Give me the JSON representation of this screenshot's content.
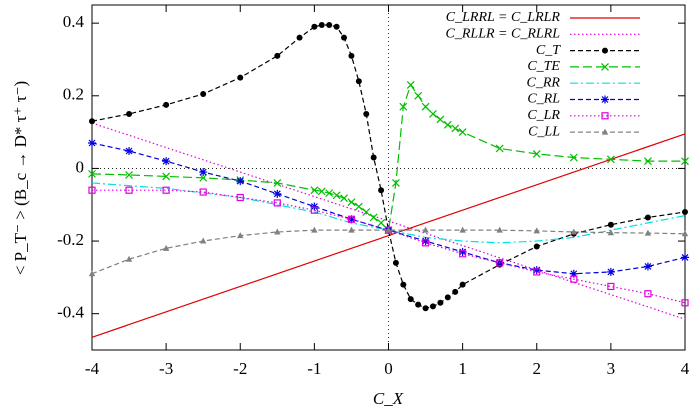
{
  "chart_data": {
    "type": "line",
    "x_label": "C_X",
    "y_label": "< P_T⁻ > (B_c → D* τ⁺ τ⁻)",
    "xlim": [
      -4,
      4
    ],
    "xticks": [
      -4,
      -3,
      -2,
      -1,
      0,
      1,
      2,
      3,
      4
    ],
    "ylim": [
      -0.5,
      0.45
    ],
    "yticks": [
      -0.4,
      -0.2,
      0,
      0.2,
      0.4
    ],
    "zero_lines": true,
    "legend": "top-right",
    "series": [
      {
        "name": "C_LRRL = C_LRLR",
        "color": "#e00000",
        "dash": "solid",
        "marker": null,
        "x": [
          -4,
          4
        ],
        "values": [
          -0.465,
          0.095
        ]
      },
      {
        "name": "C_RLLR = C_RLRL",
        "color": "#e000e0",
        "dash": "dotted",
        "marker": null,
        "x": [
          -4,
          0,
          4
        ],
        "values": [
          0.125,
          -0.145,
          -0.415
        ]
      },
      {
        "name": "C_T",
        "color": "#000000",
        "dash": "dashed",
        "marker": "circle",
        "x": [
          -4,
          -3.5,
          -3,
          -2.5,
          -2,
          -1.5,
          -1.2,
          -1,
          -0.9,
          -0.8,
          -0.7,
          -0.6,
          -0.5,
          -0.4,
          -0.3,
          -0.2,
          -0.1,
          0,
          0.1,
          0.2,
          0.3,
          0.4,
          0.5,
          0.6,
          0.7,
          0.8,
          0.9,
          1,
          1.5,
          2,
          2.5,
          3,
          3.5,
          4
        ],
        "values": [
          0.13,
          0.15,
          0.175,
          0.205,
          0.25,
          0.31,
          0.36,
          0.39,
          0.395,
          0.395,
          0.39,
          0.36,
          0.31,
          0.24,
          0.15,
          0.03,
          -0.06,
          -0.17,
          -0.26,
          -0.32,
          -0.36,
          -0.375,
          -0.385,
          -0.38,
          -0.37,
          -0.355,
          -0.34,
          -0.32,
          -0.265,
          -0.215,
          -0.18,
          -0.155,
          -0.135,
          -0.12
        ]
      },
      {
        "name": "C_TE",
        "color": "#00c000",
        "dash": "longdash",
        "marker": "x",
        "x": [
          -4,
          -3.5,
          -3,
          -2.5,
          -2,
          -1.5,
          -1,
          -0.9,
          -0.8,
          -0.7,
          -0.6,
          -0.5,
          -0.4,
          -0.3,
          -0.2,
          -0.1,
          0,
          0.1,
          0.2,
          0.3,
          0.4,
          0.5,
          0.6,
          0.7,
          0.8,
          0.9,
          1,
          1.5,
          2,
          2.5,
          3,
          3.5,
          4
        ],
        "values": [
          -0.015,
          -0.018,
          -0.022,
          -0.026,
          -0.032,
          -0.04,
          -0.06,
          -0.063,
          -0.068,
          -0.074,
          -0.082,
          -0.093,
          -0.105,
          -0.12,
          -0.135,
          -0.15,
          -0.17,
          -0.04,
          0.17,
          0.23,
          0.2,
          0.17,
          0.15,
          0.135,
          0.12,
          0.11,
          0.1,
          0.055,
          0.04,
          0.03,
          0.025,
          0.02,
          0.02
        ]
      },
      {
        "name": "C_RR",
        "color": "#00e0e0",
        "dash": "dashdot",
        "marker": null,
        "x": [
          -4,
          -3,
          -2,
          -1.5,
          -1,
          -0.5,
          0,
          0.5,
          1,
          1.5,
          2,
          2.5,
          3,
          3.5,
          4
        ],
        "values": [
          -0.04,
          -0.055,
          -0.08,
          -0.1,
          -0.12,
          -0.15,
          -0.17,
          -0.19,
          -0.2,
          -0.205,
          -0.2,
          -0.19,
          -0.17,
          -0.15,
          -0.13
        ]
      },
      {
        "name": "C_RL",
        "color": "#0000e0",
        "dash": "dashed",
        "marker": "star",
        "x": [
          -4,
          -3.5,
          -3,
          -2.5,
          -2,
          -1.5,
          -1,
          -0.5,
          0,
          0.5,
          1,
          1.5,
          2,
          2.5,
          3,
          3.5,
          4
        ],
        "values": [
          0.07,
          0.048,
          0.02,
          -0.01,
          -0.035,
          -0.07,
          -0.105,
          -0.14,
          -0.17,
          -0.2,
          -0.23,
          -0.26,
          -0.28,
          -0.29,
          -0.285,
          -0.27,
          -0.245
        ]
      },
      {
        "name": "C_LR",
        "color": "#e000e0",
        "dash": "dotted",
        "marker": "square",
        "x": [
          -4,
          -3.5,
          -3,
          -2.5,
          -2,
          -1.5,
          -1,
          -0.5,
          0,
          0.5,
          1,
          1.5,
          2,
          2.5,
          3,
          3.5,
          4
        ],
        "values": [
          -0.06,
          -0.06,
          -0.06,
          -0.065,
          -0.08,
          -0.095,
          -0.115,
          -0.14,
          -0.17,
          -0.205,
          -0.235,
          -0.26,
          -0.285,
          -0.305,
          -0.325,
          -0.345,
          -0.37
        ]
      },
      {
        "name": "C_LL",
        "color": "#808080",
        "dash": "dashed",
        "marker": "triangle",
        "x": [
          -4,
          -3.5,
          -3,
          -2.5,
          -2,
          -1.5,
          -1,
          -0.5,
          0,
          0.5,
          1,
          1.5,
          2,
          2.5,
          3,
          3.5,
          4
        ],
        "values": [
          -0.29,
          -0.25,
          -0.22,
          -0.2,
          -0.185,
          -0.175,
          -0.17,
          -0.17,
          -0.17,
          -0.17,
          -0.17,
          -0.17,
          -0.172,
          -0.175,
          -0.177,
          -0.178,
          -0.18
        ]
      }
    ]
  }
}
